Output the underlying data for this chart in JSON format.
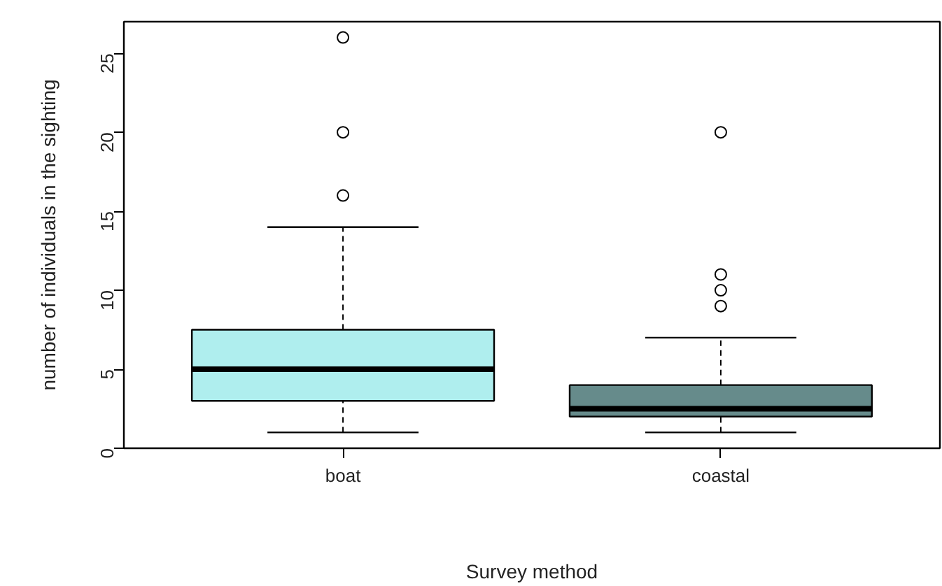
{
  "chart_data": {
    "type": "box",
    "xlabel": "Survey method",
    "ylabel": "number of individuals in the sighting",
    "categories": [
      "boat",
      "coastal"
    ],
    "colors": [
      "#afeeee",
      "#668b8b"
    ],
    "boxes": [
      {
        "low": 1,
        "q1": 3,
        "median": 5,
        "q3": 7.5,
        "high": 14,
        "outliers": [
          16,
          20,
          26
        ]
      },
      {
        "low": 1,
        "q1": 2,
        "median": 2.5,
        "q3": 4,
        "high": 7,
        "outliers": [
          9,
          10,
          11,
          20
        ]
      }
    ],
    "ylim": [
      0,
      27
    ],
    "yticks": [
      0,
      5,
      10,
      15,
      20,
      25
    ]
  }
}
